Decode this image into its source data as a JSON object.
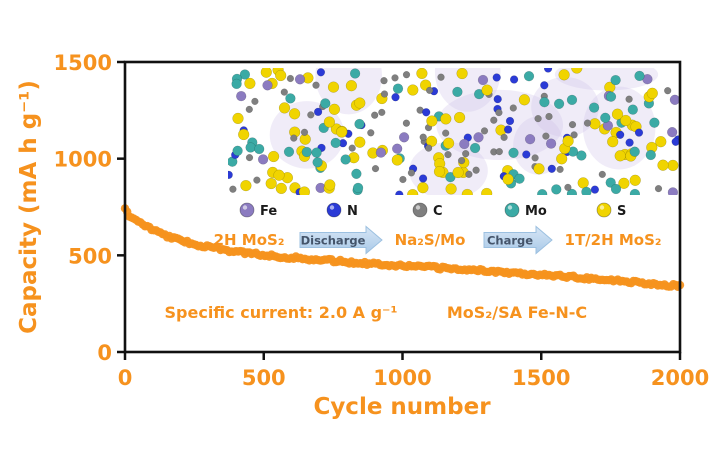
{
  "chart_data": {
    "type": "scatter",
    "title": "",
    "xlabel": "Cycle number",
    "ylabel": "Capacity (mA h g⁻¹)",
    "xlim": [
      0,
      2000
    ],
    "ylim": [
      0,
      1500
    ],
    "x_ticks": [
      0,
      500,
      1000,
      1500,
      2000
    ],
    "y_ticks": [
      0,
      500,
      1000,
      1500
    ],
    "grid": false,
    "legend_position": "none",
    "series": [
      {
        "name": "MoS₂/SA Fe-N-C",
        "marker": "circle",
        "color": "#F6921E",
        "x": [
          0,
          10,
          25,
          50,
          75,
          100,
          150,
          200,
          250,
          300,
          350,
          400,
          450,
          500,
          600,
          700,
          800,
          900,
          1000,
          1100,
          1200,
          1300,
          1400,
          1500,
          1600,
          1700,
          1800,
          1900,
          2000
        ],
        "y": [
          735,
          715,
          697,
          672,
          651,
          632,
          601,
          577,
          558,
          543,
          530,
          519,
          510,
          502,
          488,
          477,
          466,
          456,
          447,
          438,
          429,
          420,
          410,
          400,
          390,
          378,
          366,
          353,
          340
        ]
      }
    ]
  },
  "annotations": {
    "specific_current": "Specific current: 2.0 A g⁻¹",
    "material": "MoS₂/SA Fe-N-C"
  },
  "inset": {
    "legend": [
      {
        "label": "Fe",
        "color": "#8B7BC0"
      },
      {
        "label": "N",
        "color": "#2B3BD6"
      },
      {
        "label": "C",
        "color": "#7F7F7F"
      },
      {
        "label": "Mo",
        "color": "#3BAAA5"
      },
      {
        "label": "S",
        "color": "#F0D400"
      }
    ],
    "reaction": {
      "state1": "2H MoS₂",
      "arrow1": "Discharge",
      "state2": "Na₂S/Mo",
      "arrow2": "Charge",
      "state3": "1T/2H MoS₂"
    }
  },
  "colors": {
    "accent_orange": "#F6921E",
    "axis_black": "#111111",
    "arrow_fill": "#BDD7EE",
    "arrow_stroke": "#9CC0E0"
  }
}
